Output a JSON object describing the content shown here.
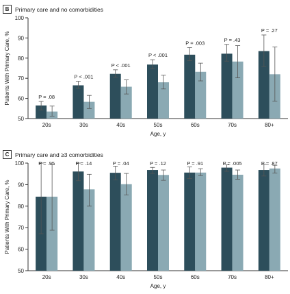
{
  "colors": {
    "bar_dark": "#2d4e5b",
    "bar_light": "#8aa9b3",
    "axis": "#333333"
  },
  "chart_data": [
    {
      "type": "bar",
      "panel_letter": "B",
      "title": "Primary care and no comorbidities",
      "xlabel": "Age, y",
      "ylabel": "Patients With Primary Care, %",
      "ylim": [
        50,
        100
      ],
      "yticks": [
        50,
        60,
        70,
        80,
        90,
        100
      ],
      "categories": [
        "20s",
        "30s",
        "40s",
        "50s",
        "60s",
        "70s",
        "80+"
      ],
      "series": [
        {
          "values": [
            56.5,
            66.5,
            72.2,
            76.8,
            81.7,
            82.2,
            83.5
          ],
          "err_low": [
            54.2,
            65.0,
            70.5,
            74.8,
            78.7,
            78.5,
            75.8
          ],
          "err_high": [
            58.5,
            68.5,
            74.2,
            79.2,
            85.2,
            86.8,
            91.5
          ]
        },
        {
          "values": [
            53.5,
            58.3,
            65.8,
            68.0,
            73.2,
            78.3,
            72.0
          ],
          "err_low": [
            51.2,
            55.0,
            62.2,
            64.7,
            68.7,
            70.2,
            58.6
          ],
          "err_high": [
            56.2,
            61.5,
            69.2,
            71.5,
            77.5,
            86.2,
            85.5
          ]
        }
      ],
      "annotations": [
        "P = .08",
        "P < .001",
        "P < .001",
        "P < .001",
        "P = .003",
        "P = .43",
        "P = .27"
      ]
    },
    {
      "type": "bar",
      "panel_letter": "C",
      "title": "Primary care and ≥3 comorbidities",
      "xlabel": "Age, y",
      "ylabel": "Patients With Primary Care, %",
      "ylim": [
        50,
        100
      ],
      "yticks": [
        50,
        60,
        70,
        80,
        90,
        100
      ],
      "categories": [
        "20s",
        "30s",
        "40s",
        "50s",
        "60s",
        "70s",
        "80+"
      ],
      "series": [
        {
          "values": [
            84.4,
            96.1,
            95.5,
            96.8,
            95.6,
            97.9,
            96.8
          ],
          "err_low": [
            67.2,
            91.8,
            92.2,
            95.2,
            92.8,
            96.2,
            94.0
          ],
          "err_high": [
            100,
            100,
            98.6,
            98.0,
            98.2,
            99.2,
            99.5
          ]
        },
        {
          "values": [
            84.4,
            87.8,
            90.2,
            94.5,
            95.6,
            94.6,
            97.5
          ],
          "err_low": [
            68.8,
            80.0,
            85.2,
            92.0,
            94.2,
            92.5,
            95.4
          ],
          "err_high": [
            99.2,
            94.8,
            95.2,
            96.8,
            97.4,
            96.8,
            99.0
          ]
        }
      ],
      "annotations": [
        "P = .95",
        "P = .14",
        "P = .04",
        "P = .12",
        "P = .91",
        "P = .005",
        "P = .87"
      ]
    }
  ]
}
